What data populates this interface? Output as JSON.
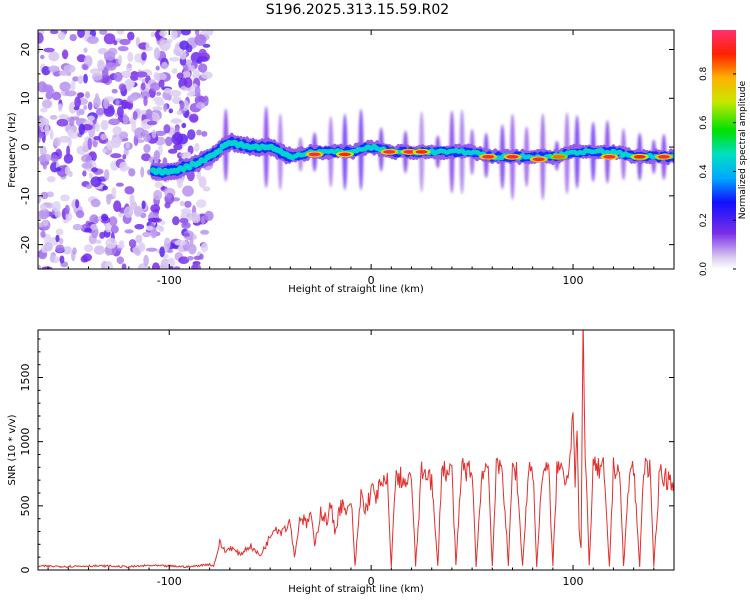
{
  "title": "S196.2025.313.15.59.R02",
  "chart_data": [
    {
      "id": "spectrogram",
      "type": "heatmap",
      "xlabel": "Height of straight line (km)",
      "ylabel": "Frequency (Hz)",
      "xlim": [
        -165,
        150
      ],
      "ylim": [
        -25,
        24
      ],
      "xticks": [
        -100,
        0,
        100
      ],
      "yticks": [
        -20,
        -10,
        0,
        10,
        20
      ],
      "colorbar": {
        "label": "Normalized spectral amplitude",
        "range": [
          0,
          0.98
        ],
        "ticks": [
          0.0,
          0.2,
          0.4,
          0.6,
          0.8
        ],
        "tick_labels": [
          "0.0",
          "0.2",
          "0.4",
          "0.6",
          "0.8"
        ]
      },
      "noise_region_x": [
        -165,
        -80
      ],
      "ridge": [
        [
          -100,
          -5
        ],
        [
          -90,
          -4
        ],
        [
          -80,
          -2
        ],
        [
          -70,
          1
        ],
        [
          -60,
          0
        ],
        [
          -50,
          0
        ],
        [
          -40,
          -2
        ],
        [
          -30,
          -1
        ],
        [
          -20,
          -1
        ],
        [
          -10,
          -1
        ],
        [
          0,
          0
        ],
        [
          10,
          -1
        ],
        [
          20,
          -1
        ],
        [
          30,
          -1
        ],
        [
          40,
          -1
        ],
        [
          50,
          -1
        ],
        [
          60,
          -2
        ],
        [
          70,
          -2
        ],
        [
          80,
          -2
        ],
        [
          90,
          -2
        ],
        [
          100,
          -1
        ],
        [
          110,
          -1
        ],
        [
          120,
          -1
        ],
        [
          130,
          -2
        ],
        [
          140,
          -2
        ],
        [
          150,
          -2
        ]
      ],
      "peaks": [
        [
          -28,
          -1.5,
          0.95
        ],
        [
          -13,
          -1.5,
          0.9
        ],
        [
          9,
          -1.0,
          0.95
        ],
        [
          19,
          -1.0,
          0.95
        ],
        [
          25,
          -1.0,
          0.9
        ],
        [
          58,
          -2.0,
          0.95
        ],
        [
          70,
          -2.0,
          0.95
        ],
        [
          83,
          -2.5,
          0.95
        ],
        [
          93,
          -2.0,
          0.85
        ],
        [
          118,
          -2.0,
          0.95
        ],
        [
          133,
          -2.0,
          0.9
        ],
        [
          145,
          -2.0,
          0.95
        ]
      ],
      "vertical_streaks": [
        -72,
        -52,
        -45,
        -35,
        -28,
        -20,
        -13,
        -5,
        5,
        17,
        25,
        33,
        40,
        45,
        50,
        57,
        65,
        70,
        77,
        85,
        92,
        97,
        102,
        110,
        117,
        125,
        133,
        140,
        145
      ]
    },
    {
      "id": "snr",
      "type": "line",
      "xlabel": "Height of straight line (km)",
      "ylabel": "SNR (10 * v/v)",
      "xlim": [
        -165,
        150
      ],
      "ylim": [
        0,
        1870
      ],
      "xticks": [
        -100,
        0,
        100
      ],
      "yticks": [
        0,
        500,
        1000,
        1500
      ],
      "color": "#e03030",
      "series": [
        {
          "name": "SNR",
          "x": [
            -165,
            -150,
            -140,
            -130,
            -120,
            -110,
            -100,
            -90,
            -80,
            -78,
            -75,
            -72,
            -70,
            -65,
            -60,
            -55,
            -50,
            -48,
            -45,
            -40,
            -38,
            -35,
            -32,
            -30,
            -28,
            -25,
            -22,
            -20,
            -18,
            -15,
            -12,
            -10,
            -8,
            -5,
            -3,
            0,
            2,
            5,
            8,
            10,
            12,
            15,
            18,
            20,
            22,
            25,
            28,
            30,
            33,
            35,
            38,
            40,
            42,
            45,
            48,
            50,
            52,
            55,
            58,
            60,
            62,
            65,
            68,
            70,
            72,
            75,
            78,
            80,
            82,
            85,
            88,
            90,
            92,
            95,
            97,
            99,
            100,
            101,
            102,
            103,
            104,
            105,
            106,
            107,
            108,
            110,
            113,
            115,
            118,
            120,
            123,
            125,
            128,
            130,
            133,
            135,
            138,
            140,
            143,
            145,
            150
          ],
          "y": [
            30,
            28,
            32,
            30,
            25,
            35,
            30,
            25,
            45,
            30,
            210,
            140,
            180,
            120,
            190,
            110,
            260,
            350,
            300,
            380,
            100,
            430,
            350,
            450,
            180,
            460,
            380,
            500,
            300,
            520,
            420,
            560,
            30,
            600,
            450,
            620,
            580,
            650,
            680,
            30,
            700,
            720,
            650,
            740,
            30,
            760,
            780,
            680,
            30,
            800,
            750,
            780,
            30,
            820,
            760,
            800,
            30,
            780,
            810,
            30,
            780,
            800,
            30,
            810,
            770,
            30,
            790,
            800,
            30,
            800,
            760,
            30,
            790,
            790,
            700,
            1000,
            1300,
            700,
            1100,
            300,
            160,
            1870,
            820,
            600,
            30,
            800,
            780,
            800,
            30,
            790,
            800,
            30,
            760,
            800,
            30,
            820,
            770,
            30,
            800,
            720,
            700
          ]
        }
      ]
    }
  ]
}
